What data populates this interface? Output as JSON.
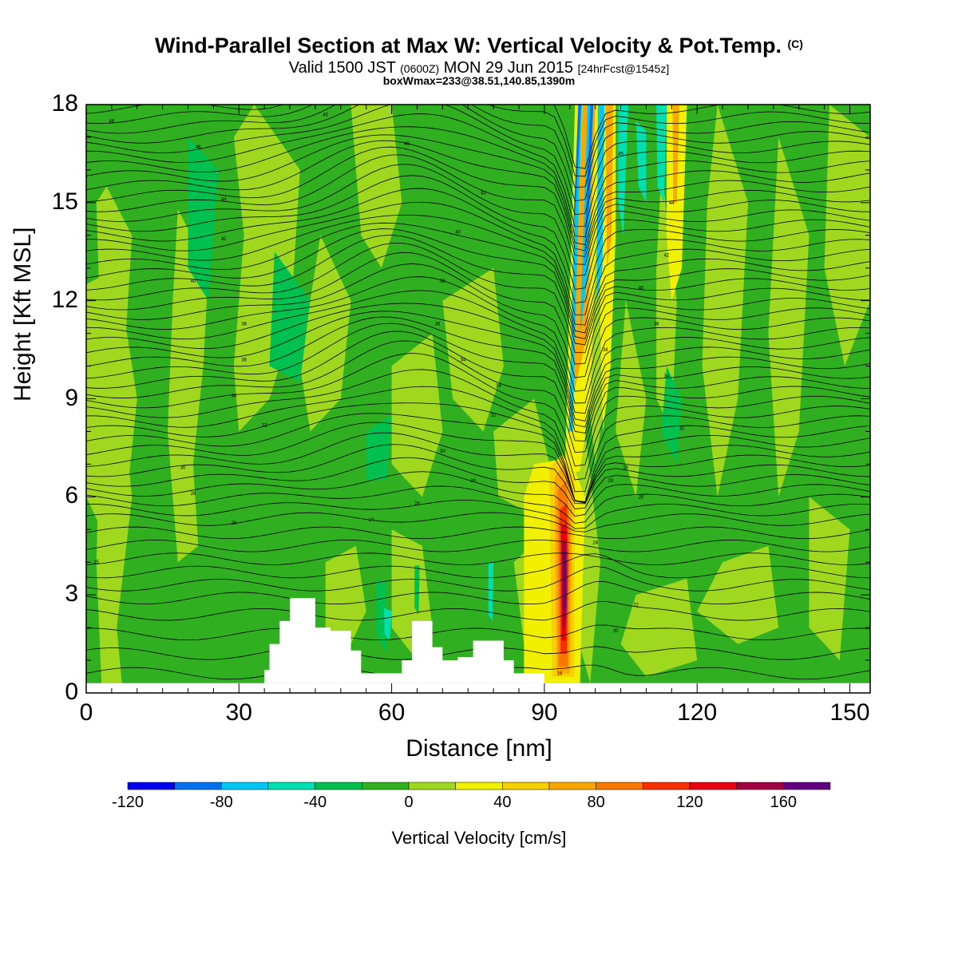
{
  "title": {
    "line1": "Wind-Parallel Section at Max W: Vertical Velocity & Pot.Temp.",
    "copyright": "(C)",
    "line2_a": "Valid 1500 JST ",
    "line2_b": "(0600Z)",
    "line2_c": " MON 29 Jun 2015 ",
    "line2_d": "[24hrFcst@1545z]",
    "line3": "boxWmax=233@38.51,140.85,1390m"
  },
  "chart_data": {
    "type": "heatmap",
    "xlabel": "Distance [nm]",
    "ylabel": "Height [Kft MSL]",
    "xlim": [
      0,
      154
    ],
    "ylim": [
      0,
      18
    ],
    "xticks": [
      0,
      30,
      60,
      90,
      120,
      150
    ],
    "yticks": [
      0,
      3,
      6,
      9,
      12,
      15,
      18
    ],
    "colorbar": {
      "label": "Vertical Velocity [cm/s]",
      "tick_labels": [
        "-120",
        "-80",
        "-40",
        "0",
        "40",
        "80",
        "120",
        "160"
      ],
      "tick_values": [
        -120,
        -80,
        -40,
        0,
        40,
        80,
        120,
        160
      ],
      "levels": [
        -120,
        -100,
        -80,
        -60,
        -40,
        -20,
        0,
        20,
        40,
        60,
        80,
        100,
        120,
        140,
        160,
        180
      ],
      "colors": [
        "#0000f0",
        "#0070f0",
        "#00c8f0",
        "#00e0b0",
        "#00c050",
        "#30b020",
        "#a0d820",
        "#f0f000",
        "#f8d000",
        "#f8a800",
        "#f87800",
        "#f83000",
        "#e80010",
        "#a00040",
        "#600080"
      ]
    },
    "terrain": [
      [
        33,
        0.3
      ],
      [
        35,
        0.7
      ],
      [
        36,
        1.5
      ],
      [
        38,
        2.2
      ],
      [
        40,
        2.9
      ],
      [
        44,
        2.9
      ],
      [
        45,
        2.0
      ],
      [
        48,
        1.9
      ],
      [
        52,
        1.3
      ],
      [
        54,
        0.6
      ],
      [
        59,
        0.6
      ],
      [
        60,
        0.6
      ],
      [
        62,
        1.0
      ],
      [
        64,
        2.2
      ],
      [
        66,
        2.2
      ],
      [
        68,
        1.4
      ],
      [
        70,
        1.0
      ],
      [
        73,
        1.1
      ],
      [
        76,
        1.6
      ],
      [
        80,
        1.6
      ],
      [
        82,
        1.0
      ],
      [
        84,
        0.6
      ],
      [
        89,
        0.6
      ],
      [
        90,
        0.3
      ]
    ],
    "theta_contour_labels": [
      {
        "x": 5,
        "y": 17.5,
        "label": "46"
      },
      {
        "x": 47,
        "y": 17.7,
        "label": "45"
      },
      {
        "x": 22,
        "y": 16.7,
        "label": "46"
      },
      {
        "x": 63,
        "y": 16.8,
        "label": "45"
      },
      {
        "x": 27,
        "y": 15.1,
        "label": "44"
      },
      {
        "x": 78,
        "y": 15.3,
        "label": "43"
      },
      {
        "x": 27,
        "y": 13.9,
        "label": "42"
      },
      {
        "x": 73,
        "y": 14.1,
        "label": "40"
      },
      {
        "x": 21,
        "y": 12.6,
        "label": "40"
      },
      {
        "x": 70,
        "y": 12.6,
        "label": "38"
      },
      {
        "x": 31,
        "y": 11.3,
        "label": "38"
      },
      {
        "x": 69,
        "y": 11.3,
        "label": "36"
      },
      {
        "x": 31,
        "y": 10.2,
        "label": "36"
      },
      {
        "x": 74,
        "y": 10.2,
        "label": "34"
      },
      {
        "x": 29,
        "y": 9.1,
        "label": "34"
      },
      {
        "x": 81,
        "y": 9.4,
        "label": "34"
      },
      {
        "x": 35,
        "y": 8.2,
        "label": "32"
      },
      {
        "x": 80,
        "y": 8.5,
        "label": "32"
      },
      {
        "x": 19,
        "y": 6.9,
        "label": "30"
      },
      {
        "x": 70,
        "y": 7.4,
        "label": "30"
      },
      {
        "x": 21,
        "y": 6.1,
        "label": "28"
      },
      {
        "x": 76,
        "y": 6.5,
        "label": "28"
      },
      {
        "x": 29,
        "y": 5.2,
        "label": "26"
      },
      {
        "x": 65,
        "y": 5.8,
        "label": "26"
      },
      {
        "x": 56,
        "y": 5.3,
        "label": "24"
      },
      {
        "x": 2,
        "y": 4.0,
        "label": "25"
      },
      {
        "x": 105,
        "y": 16.5,
        "label": "45"
      },
      {
        "x": 115,
        "y": 15.0,
        "label": "44"
      },
      {
        "x": 114,
        "y": 13.4,
        "label": "42"
      },
      {
        "x": 109,
        "y": 12.4,
        "label": "40"
      },
      {
        "x": 112,
        "y": 11.3,
        "label": "38"
      },
      {
        "x": 102,
        "y": 10.5,
        "label": "36"
      },
      {
        "x": 114,
        "y": 9.7,
        "label": "34"
      },
      {
        "x": 117,
        "y": 8.1,
        "label": "32"
      },
      {
        "x": 106,
        "y": 6.9,
        "label": "30"
      },
      {
        "x": 103,
        "y": 6.5,
        "label": "28"
      },
      {
        "x": 109,
        "y": 6.0,
        "label": "26"
      },
      {
        "x": 100,
        "y": 4.6,
        "label": "24"
      },
      {
        "x": 108,
        "y": 2.7,
        "label": "22"
      },
      {
        "x": 104,
        "y": 1.9,
        "label": "20"
      },
      {
        "x": 93,
        "y": 0.6,
        "label": "18"
      }
    ]
  }
}
